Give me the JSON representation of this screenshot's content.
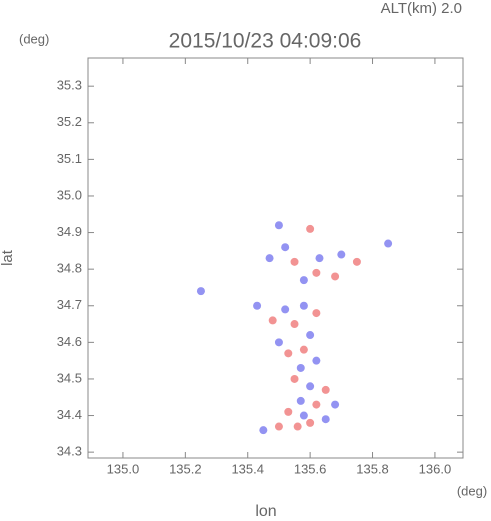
{
  "chart_data": {
    "type": "scatter",
    "title": "2015/10/23 04:09:06",
    "altitude_label": "ALT(km) 2.0",
    "x_label": "lon",
    "y_label": "lat",
    "x_unit": "(deg)",
    "y_unit": "(deg)",
    "xlim": [
      134.888,
      136.09
    ],
    "ylim": [
      34.284,
      35.377
    ],
    "xticks": [
      {
        "value": 135,
        "label": "135.0"
      },
      135.2,
      135.4,
      135.6,
      135.8,
      {
        "value": 136,
        "label": "136.0"
      }
    ],
    "yticks": [
      34.3,
      34.4,
      34.5,
      34.6,
      34.7,
      34.8,
      34.9,
      {
        "value": 35,
        "label": "35.0"
      },
      35.1,
      35.2,
      35.3
    ],
    "x": [
      135.5,
      135.6,
      135.52,
      135.47,
      135.55,
      135.63,
      135.7,
      135.68,
      135.58,
      135.62,
      135.75,
      135.85,
      135.52,
      135.58,
      135.62,
      135.48,
      135.55,
      135.6,
      135.5,
      135.53,
      135.58,
      135.62,
      135.57,
      135.55,
      135.6,
      135.65,
      135.57,
      135.62,
      135.68,
      135.53,
      135.58,
      135.5,
      135.56,
      135.6,
      135.45,
      135.65,
      135.25,
      135.43
    ],
    "values": [
      34.92,
      34.91,
      34.86,
      34.83,
      34.82,
      34.83,
      34.84,
      34.78,
      34.77,
      34.79,
      34.82,
      34.87,
      34.69,
      34.7,
      34.68,
      34.66,
      34.65,
      34.62,
      34.6,
      34.57,
      34.58,
      34.55,
      34.53,
      34.5,
      34.48,
      34.47,
      34.44,
      34.43,
      34.43,
      34.41,
      34.4,
      34.37,
      34.37,
      34.38,
      34.36,
      34.39,
      34.74,
      34.7
    ],
    "colors": [
      "#8080f0",
      "#f08080",
      "#8080f0",
      "#8080f0",
      "#f08080",
      "#8080f0",
      "#8080f0",
      "#f08080",
      "#8080f0",
      "#f08080",
      "#f08080",
      "#8080f0",
      "#8080f0",
      "#8080f0",
      "#f08080",
      "#f08080",
      "#f08080",
      "#8080f0",
      "#8080f0",
      "#f08080",
      "#f08080",
      "#8080f0",
      "#8080f0",
      "#f08080",
      "#8080f0",
      "#f08080",
      "#8080f0",
      "#f08080",
      "#8080f0",
      "#f08080",
      "#8080f0",
      "#f08080",
      "#f08080",
      "#f08080",
      "#8080f0",
      "#8080f0",
      "#8080f0",
      "#8080f0"
    ]
  }
}
